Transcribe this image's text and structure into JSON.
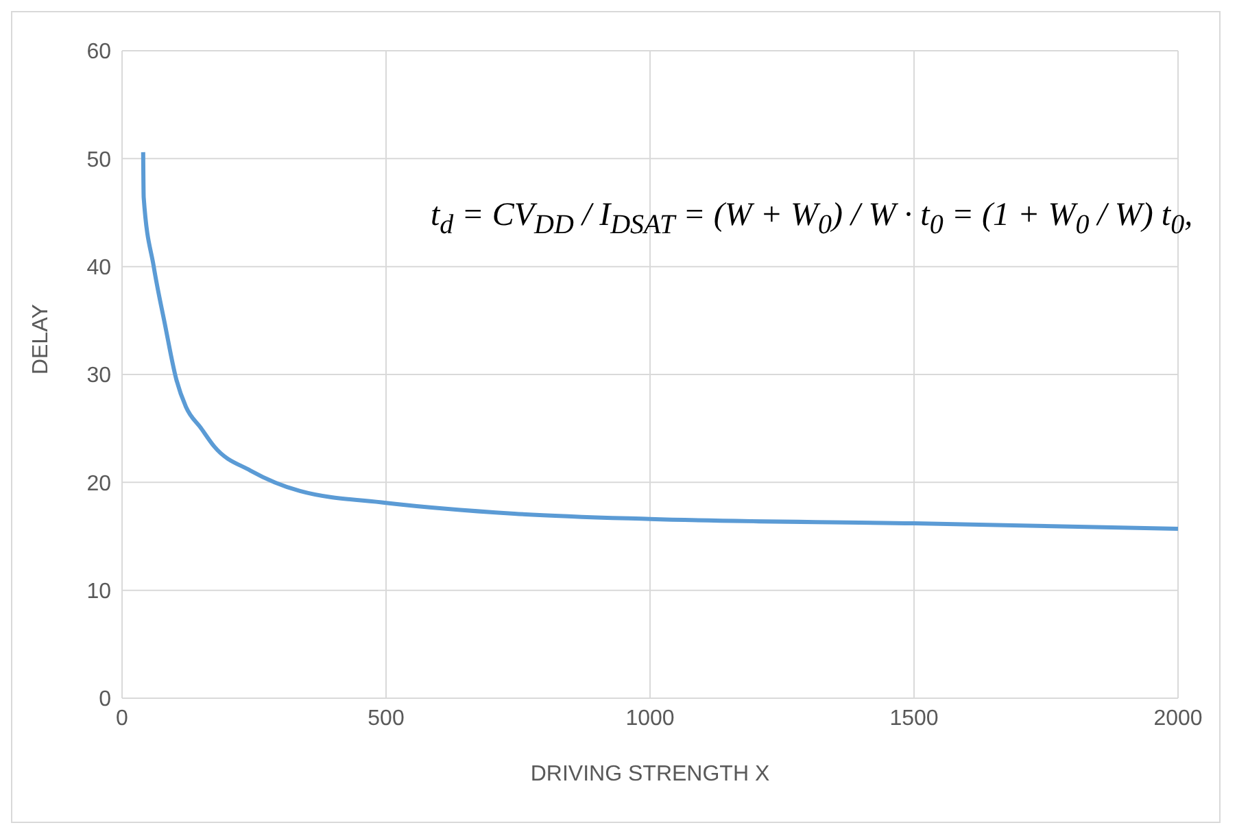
{
  "chart_data": {
    "type": "line",
    "xlabel": "DRIVING STRENGTH X",
    "ylabel": "DELAY",
    "annotations": [
      "t$_{d}$ = CV$_{DD}$ / I$_{DSAT}$ = (W + W$_{0}$) / W · t$_{0}$ = (1 + W$_{0}$ / W) t$_{0}$,"
    ],
    "x": [
      40,
      41,
      60,
      81,
      103,
      121,
      150,
      175,
      243,
      337,
      500,
      743,
      1000,
      1500,
      2000
    ],
    "series": [
      {
        "color": "#5b9bd5",
        "values": [
          50.6,
          46.4,
          40,
          34.7,
          29.5,
          27,
          25,
          23.3,
          21.1,
          19.2,
          18.1,
          17.1,
          16.6,
          16.2,
          15.7
        ]
      }
    ],
    "xlim": [
      0,
      2000
    ],
    "xticks": [
      0,
      500,
      1000,
      1500,
      2000
    ],
    "ylim": [
      0,
      60
    ],
    "yticks": [
      0,
      10,
      20,
      30,
      40,
      50,
      60
    ],
    "grid": true,
    "legend": false,
    "marker": "none",
    "line_style": "solid"
  }
}
